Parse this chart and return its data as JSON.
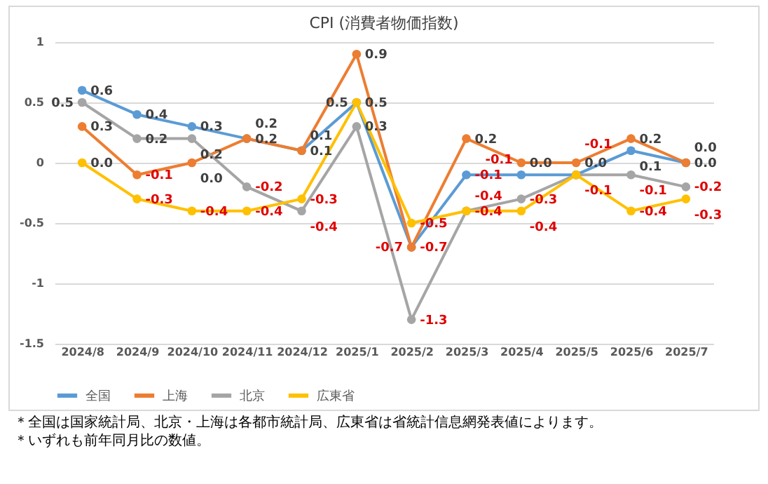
{
  "chart_data": {
    "type": "line",
    "title": "CPI (消費者物価指数)",
    "categories": [
      "2024/8",
      "2024/9",
      "2024/10",
      "2024/11",
      "2024/12",
      "2025/1",
      "2025/2",
      "2025/3",
      "2025/4",
      "2025/5",
      "2025/6",
      "2025/7"
    ],
    "series": [
      {
        "name": "全国",
        "color": "#5b9bd5",
        "values": [
          0.6,
          0.4,
          0.3,
          0.2,
          0.1,
          0.5,
          -0.7,
          -0.1,
          -0.1,
          -0.1,
          0.1,
          0.0
        ],
        "value_labels": [
          "0.6",
          "0.4",
          "0.3",
          "0.2",
          "0.1",
          "0.5",
          "-0.7",
          "-0.1",
          "-0.1",
          "-0.1",
          "0.1",
          "0.0"
        ]
      },
      {
        "name": "上海",
        "color": "#ed7d31",
        "values": [
          0.3,
          -0.1,
          0.0,
          0.2,
          0.1,
          0.9,
          -0.7,
          0.2,
          0.0,
          0.0,
          0.2,
          0.0
        ],
        "value_labels": [
          "0.3",
          "-0.1",
          "0.0",
          "0.2",
          "0.1",
          "0.9",
          "-0.7",
          "0.2",
          "0.0",
          "0.0",
          "0.2",
          "0.0"
        ]
      },
      {
        "name": "北京",
        "color": "#a5a5a5",
        "values": [
          0.5,
          0.2,
          0.2,
          -0.2,
          -0.4,
          0.3,
          -1.3,
          -0.4,
          -0.3,
          -0.1,
          -0.1,
          -0.2
        ],
        "value_labels": [
          "0.5",
          "0.2",
          "0.2",
          "-0.2",
          "-0.4",
          "0.3",
          "-1.3",
          "-0.4",
          "-0.3",
          "-0.1",
          "-0.1",
          "-0.2"
        ]
      },
      {
        "name": "広東省",
        "color": "#ffc000",
        "values": [
          0.0,
          -0.3,
          -0.4,
          -0.4,
          -0.3,
          0.5,
          -0.5,
          -0.4,
          -0.4,
          -0.1,
          -0.4,
          -0.3
        ],
        "value_labels": [
          "0.0",
          "-0.3",
          "-0.4",
          "-0.4",
          "-0.3",
          "0.5",
          "-0.5",
          "-0.4",
          "-0.4",
          null,
          "-0.4",
          "-0.3"
        ]
      }
    ],
    "ylim": [
      -1.5,
      1
    ],
    "yticks": [
      -1.5,
      -1,
      -0.5,
      0,
      0.5,
      1
    ],
    "grid": "y",
    "legend": "bottom",
    "marker": "circle",
    "line_style": "solid",
    "annotations": [
      "＊全国は国家統計局、北京・上海は各都市統計局、広東省は省統計信息網発表値によります。",
      "＊いずれも前年同月比の数値。"
    ]
  }
}
